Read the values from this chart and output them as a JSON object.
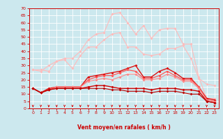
{
  "xlabel": "Vent moyen/en rafales ( km/h )",
  "xlim": [
    0,
    23
  ],
  "ylim": [
    0,
    70
  ],
  "yticks": [
    0,
    5,
    10,
    15,
    20,
    25,
    30,
    35,
    40,
    45,
    50,
    55,
    60,
    65,
    70
  ],
  "xticks": [
    0,
    1,
    2,
    3,
    4,
    5,
    6,
    7,
    8,
    9,
    10,
    11,
    12,
    13,
    14,
    15,
    16,
    17,
    18,
    19,
    20,
    21,
    22,
    23
  ],
  "bg": "#cce8ee",
  "grid_color": "#ffffff",
  "lines": [
    {
      "y": [
        27,
        27,
        26,
        33,
        34,
        28,
        37,
        43,
        43,
        48,
        52,
        53,
        43,
        43,
        38,
        37,
        38,
        42,
        42,
        44,
        35,
        21,
        17,
        16
      ],
      "color": "#ffbbbb",
      "lw": 0.8,
      "marker": true
    },
    {
      "y": [
        27,
        26,
        30,
        33,
        35,
        35,
        40,
        48,
        52,
        53,
        66,
        67,
        60,
        52,
        58,
        49,
        55,
        56,
        56,
        45,
        45,
        22,
        7,
        7
      ],
      "color": "#ffbbbb",
      "lw": 0.8,
      "marker": true
    },
    {
      "y": [
        14,
        11,
        14,
        15,
        15,
        15,
        15,
        22,
        23,
        24,
        25,
        26,
        28,
        30,
        22,
        22,
        26,
        28,
        25,
        21,
        21,
        15,
        7,
        6
      ],
      "color": "#dd1111",
      "lw": 1.0,
      "marker": true
    },
    {
      "y": [
        14,
        11,
        13,
        15,
        15,
        15,
        15,
        20,
        22,
        23,
        23,
        25,
        27,
        26,
        21,
        21,
        23,
        26,
        23,
        20,
        20,
        15,
        6,
        5
      ],
      "color": "#ff5555",
      "lw": 0.9,
      "marker": true
    },
    {
      "y": [
        14,
        11,
        13,
        15,
        15,
        15,
        15,
        19,
        20,
        21,
        20,
        22,
        24,
        24,
        20,
        20,
        21,
        24,
        22,
        19,
        19,
        14,
        6,
        5
      ],
      "color": "#ff8888",
      "lw": 0.8,
      "marker": true
    },
    {
      "y": [
        14,
        11,
        13,
        14,
        14,
        14,
        14,
        15,
        16,
        16,
        15,
        14,
        14,
        14,
        14,
        13,
        14,
        14,
        14,
        13,
        13,
        12,
        5,
        4
      ],
      "color": "#cc0000",
      "lw": 1.0,
      "marker": true
    },
    {
      "y": [
        14,
        11,
        13,
        14,
        14,
        14,
        14,
        14,
        14,
        14,
        13,
        13,
        12,
        12,
        12,
        11,
        12,
        12,
        12,
        11,
        10,
        10,
        5,
        4
      ],
      "color": "#bb0000",
      "lw": 0.8,
      "marker": true
    }
  ],
  "tick_color": "#cc0000",
  "xlabel_color": "#cc0000",
  "arrow_color": "#cc0000",
  "markersize": 2.0,
  "spine_color": "#cc0000"
}
